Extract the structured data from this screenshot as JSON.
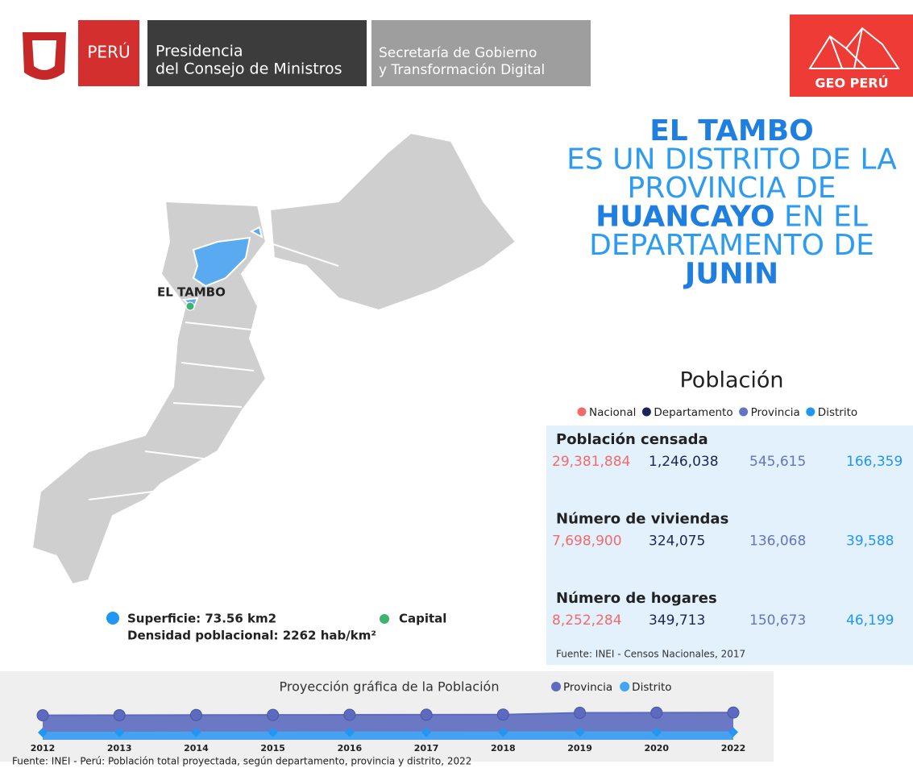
{
  "header": {
    "brand": "PERÚ",
    "presidencia": [
      "Presidencia",
      "del Consejo de Ministros"
    ],
    "secretaria": [
      "Secretaría de Gobierno",
      "y Transformación Digital"
    ],
    "geo": "GEO PERÚ"
  },
  "title": {
    "lines": [
      [
        {
          "text": "EL TAMBO",
          "bold": true
        }
      ],
      [
        {
          "text": "ES UN DISTRITO DE LA",
          "bold": false
        }
      ],
      [
        {
          "text": "PROVINCIA DE",
          "bold": false
        }
      ],
      [
        {
          "text": "HUANCAYO",
          "bold": true
        },
        {
          "text": " EN EL",
          "bold": false
        }
      ],
      [
        {
          "text": "DEPARTAMENTO DE",
          "bold": false
        }
      ],
      [
        {
          "text": "JUNIN",
          "bold": true
        }
      ]
    ]
  },
  "map": {
    "label": "EL TAMBO",
    "superficie": "Superficie: 73.56 km2",
    "capital": "Capital",
    "densidad": "Densidad poblacional: 2262 hab/km²"
  },
  "poblacion": {
    "title": "Población",
    "legend": [
      {
        "name": "Nacional",
        "color": "#f26b6b"
      },
      {
        "name": "Departamento",
        "color": "#1b2559"
      },
      {
        "name": "Provincia",
        "color": "#6573c3"
      },
      {
        "name": "Distrito",
        "color": "#2196f3"
      }
    ],
    "rows": [
      {
        "label": "Población censada",
        "values": [
          "29,381,884",
          "1,246,038",
          "545,615",
          "166,359"
        ]
      },
      {
        "label": "Número de viviendas",
        "values": [
          "7,698,900",
          "324,075",
          "136,068",
          "39,588"
        ]
      },
      {
        "label": "Número de hogares",
        "values": [
          "8,252,284",
          "349,713",
          "150,673",
          "46,199"
        ]
      }
    ],
    "source": "Fuente: INEI - Censos Nacionales, 2017"
  },
  "chart_data": {
    "type": "line",
    "title": "Proyección gráfica de la Población",
    "categories": [
      "2012",
      "2013",
      "2014",
      "2015",
      "2016",
      "2017",
      "2018",
      "2019",
      "2020",
      "2022"
    ],
    "series": [
      {
        "name": "Provincia",
        "color": "#5c6bc0",
        "values": [
          540000,
          543000,
          546000,
          548000,
          551000,
          553000,
          556000,
          595000,
          598000,
          600000
        ]
      },
      {
        "name": "Distrito",
        "color": "#42a5f5",
        "values": [
          160000,
          161000,
          162000,
          163000,
          164000,
          165000,
          166000,
          168000,
          169000,
          170000
        ]
      }
    ],
    "ylim": [
      0,
      640000
    ],
    "note": "Fuente: INEI - Perú: Población total proyectada, según departamento, provincia y distrito, 2022"
  }
}
